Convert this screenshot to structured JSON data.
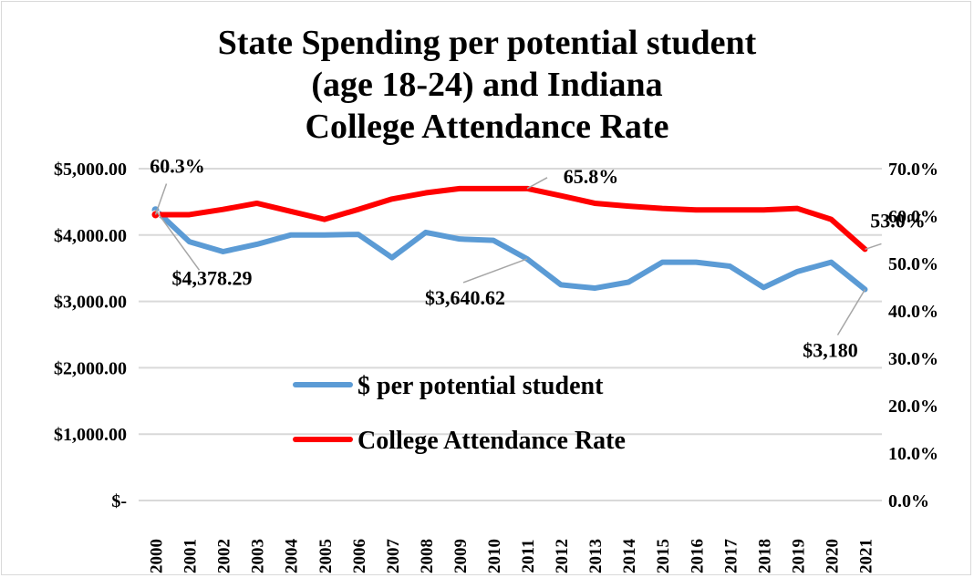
{
  "chart_data": {
    "type": "line",
    "title_lines": [
      "State Spending per potential student",
      "(age 18-24) and Indiana",
      "College Attendance Rate"
    ],
    "categories": [
      "2000",
      "2001",
      "2002",
      "2003",
      "2004",
      "2005",
      "2006",
      "2007",
      "2008",
      "2009",
      "2010",
      "2011",
      "2012",
      "2013",
      "2014",
      "2015",
      "2016",
      "2017",
      "2018",
      "2019",
      "2020",
      "2021"
    ],
    "y_left": {
      "ticks": [
        "$5,000.00",
        "$4,000.00",
        "$3,000.00",
        "$2,000.00",
        "$1,000.00",
        "$-"
      ],
      "ylim": [
        0,
        5000
      ]
    },
    "y_right": {
      "ticks": [
        "70.0%",
        "60.0%",
        "50.0%",
        "40.0%",
        "30.0%",
        "20.0%",
        "10.0%",
        "0.0%"
      ],
      "ylim": [
        0,
        70
      ]
    },
    "grid": "horizontal",
    "legend_placement": "center",
    "series": [
      {
        "name": "$ per potential student",
        "axis": "left",
        "color": "#5b9bd5",
        "values": [
          4378.29,
          3900,
          3750,
          3860,
          4000,
          4000,
          4010,
          3660,
          4040,
          3940,
          3920,
          3640.62,
          3250,
          3200,
          3290,
          3590,
          3590,
          3530,
          3210,
          3450,
          3590,
          3180
        ]
      },
      {
        "name": "College Attendance Rate",
        "axis": "right",
        "color": "#ff0000",
        "values": [
          60.3,
          60.3,
          61.4,
          62.7,
          61.0,
          59.3,
          61.4,
          63.6,
          64.9,
          65.8,
          65.8,
          65.8,
          64.3,
          62.7,
          62.1,
          61.6,
          61.3,
          61.3,
          61.3,
          61.6,
          59.3,
          53.0
        ]
      }
    ],
    "annotations": [
      {
        "series": 1,
        "index": 0,
        "text": "60.3%"
      },
      {
        "series": 1,
        "index": 11,
        "text": "65.8%"
      },
      {
        "series": 1,
        "index": 21,
        "text": "53.0%"
      },
      {
        "series": 0,
        "index": 0,
        "text": "$4,378.29"
      },
      {
        "series": 0,
        "index": 11,
        "text": "$3,640.62"
      },
      {
        "series": 0,
        "index": 21,
        "text": "$3,180"
      }
    ]
  }
}
